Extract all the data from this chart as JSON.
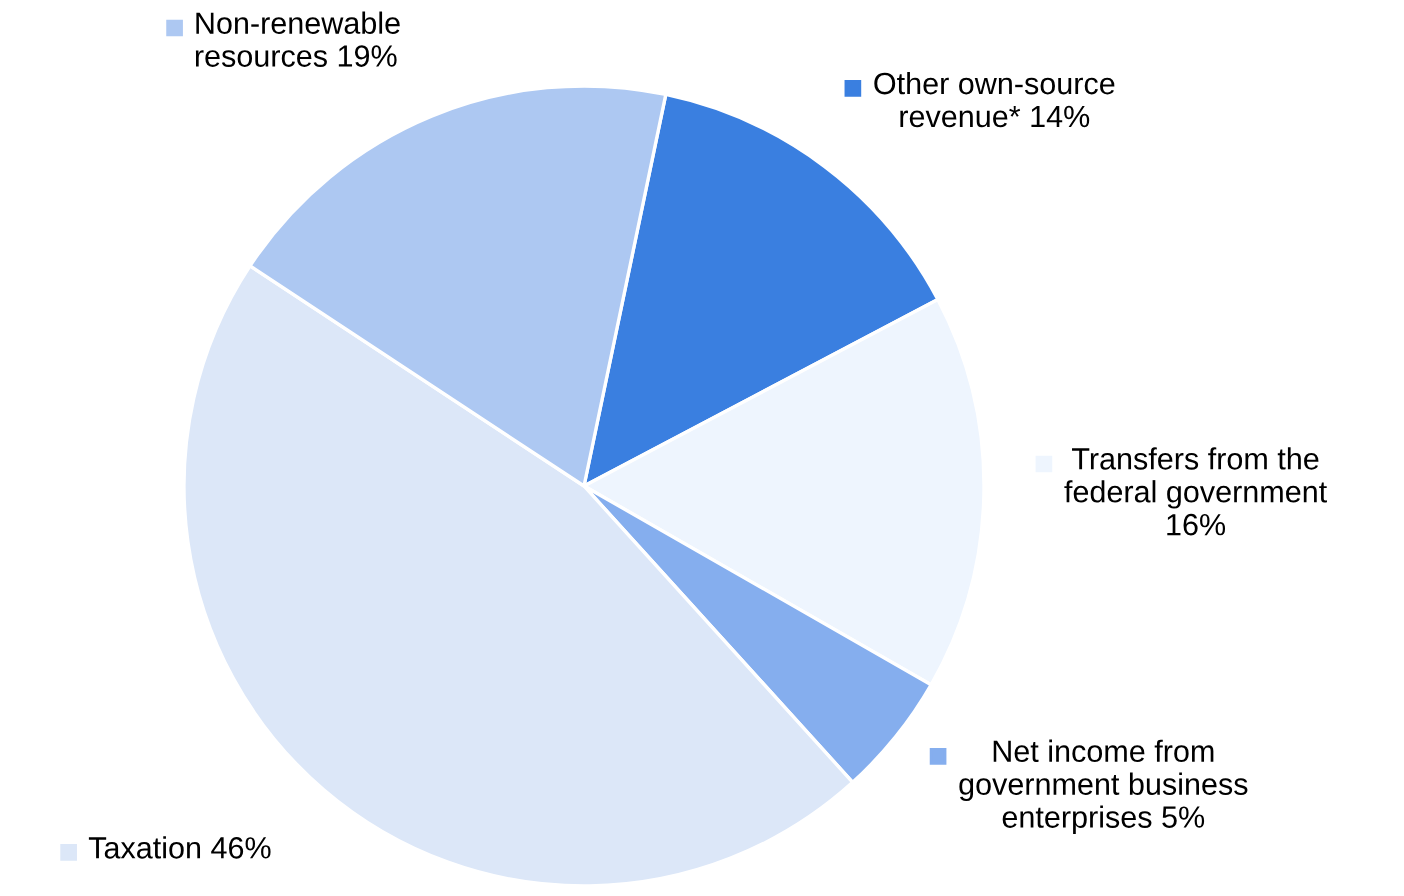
{
  "chart_data": {
    "type": "pie",
    "categories": [
      "Other own-source revenue*",
      "Transfers from the federal government",
      "Net income from government business enterprises",
      "Taxation",
      "Non-renewable resources"
    ],
    "values": [
      14,
      16,
      5,
      46,
      19
    ],
    "value_labels": [
      "14%",
      "16%",
      "5%",
      "46%",
      "19%"
    ],
    "colors": [
      "#3a7fe0",
      "#eef5fe",
      "#85aeee",
      "#dce7f8",
      "#adc8f2"
    ],
    "legend": "right"
  }
}
